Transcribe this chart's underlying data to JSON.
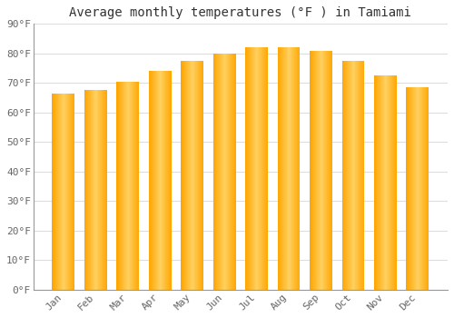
{
  "title": "Average monthly temperatures (°F ) in Tamiami",
  "months": [
    "Jan",
    "Feb",
    "Mar",
    "Apr",
    "May",
    "Jun",
    "Jul",
    "Aug",
    "Sep",
    "Oct",
    "Nov",
    "Dec"
  ],
  "values": [
    66.5,
    67.5,
    70.5,
    74.0,
    77.5,
    80.0,
    82.0,
    82.0,
    81.0,
    77.5,
    72.5,
    68.5
  ],
  "bar_color_light": "#FFD060",
  "bar_color_dark": "#FFA500",
  "ylim": [
    0,
    90
  ],
  "yticks": [
    0,
    10,
    20,
    30,
    40,
    50,
    60,
    70,
    80,
    90
  ],
  "ytick_labels": [
    "0°F",
    "10°F",
    "20°F",
    "30°F",
    "40°F",
    "50°F",
    "60°F",
    "70°F",
    "80°F",
    "90°F"
  ],
  "background_color": "#ffffff",
  "grid_color": "#dddddd",
  "title_fontsize": 10,
  "tick_fontsize": 8,
  "bar_width": 0.7
}
